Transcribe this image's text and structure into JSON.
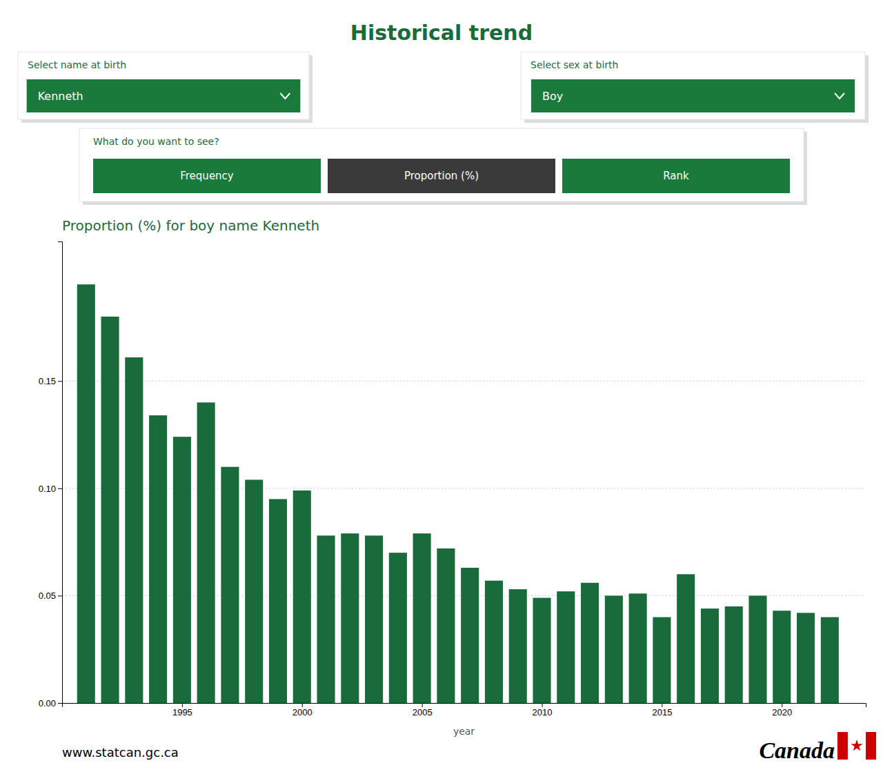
{
  "chart_data": {
    "type": "bar",
    "title": "Historical trend",
    "subtitle": "Proportion (%) for boy name Kenneth",
    "xlabel": "year",
    "x": [
      1991,
      1992,
      1993,
      1994,
      1995,
      1996,
      1997,
      1998,
      1999,
      2000,
      2001,
      2002,
      2003,
      2004,
      2005,
      2006,
      2007,
      2008,
      2009,
      2010,
      2011,
      2012,
      2013,
      2014,
      2015,
      2016,
      2017,
      2018,
      2019,
      2020,
      2021,
      2022
    ],
    "values": [
      0.195,
      0.18,
      0.161,
      0.134,
      0.124,
      0.14,
      0.11,
      0.104,
      0.095,
      0.099,
      0.078,
      0.079,
      0.078,
      0.07,
      0.079,
      0.072,
      0.063,
      0.057,
      0.053,
      0.049,
      0.052,
      0.056,
      0.05,
      0.051,
      0.04,
      0.06,
      0.044,
      0.045,
      0.05,
      0.043,
      0.042,
      0.04
    ],
    "color": "#1a6b3c",
    "xlim": [
      1990.0,
      2023.5
    ],
    "xticks": [
      1995,
      2000,
      2005,
      2010,
      2015,
      2020
    ],
    "ylim": [
      0,
      0.215
    ],
    "yticks": [
      {
        "value": 0,
        "label": "0.00"
      },
      0.05,
      {
        "value": 0.1,
        "label": "0.10"
      },
      0.15
    ],
    "grid": true,
    "annotations": [
      "Select name at birth",
      "Kenneth",
      "Select sex at birth",
      "Boy",
      "What do you want to see?",
      "Frequency",
      "Proportion (%)",
      "Rank",
      "www.statcan.gc.ca",
      "Canada"
    ]
  }
}
